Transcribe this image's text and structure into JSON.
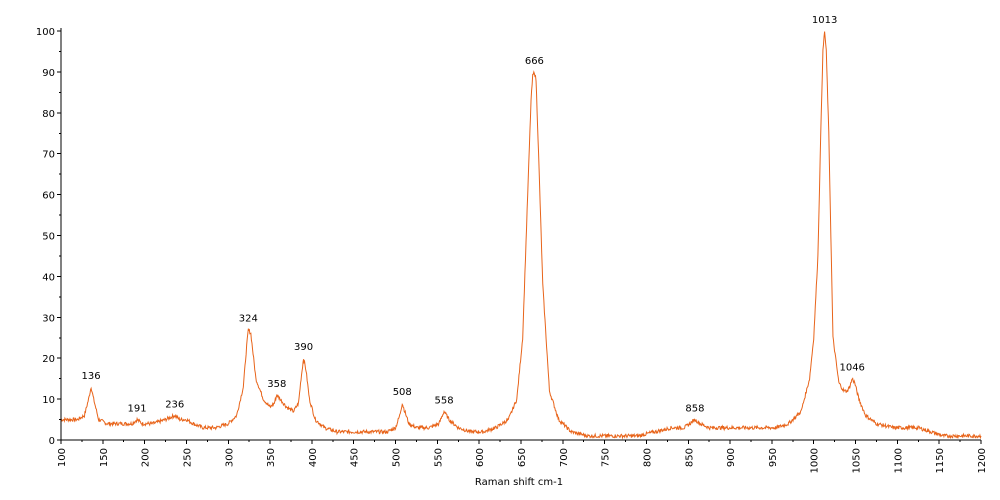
{
  "chart_data": {
    "type": "line",
    "title": "",
    "xlabel": "Raman shift cm-1",
    "ylabel": "",
    "xlim": [
      100,
      1200
    ],
    "ylim": [
      0,
      100
    ],
    "x_ticks": [
      100,
      150,
      200,
      250,
      300,
      350,
      400,
      450,
      500,
      550,
      600,
      650,
      700,
      750,
      800,
      850,
      900,
      950,
      1000,
      1050,
      1100,
      1150,
      1200
    ],
    "y_ticks": [
      0,
      10,
      20,
      30,
      40,
      50,
      60,
      70,
      80,
      90,
      100
    ],
    "grid": false,
    "line_color": "#E8641A",
    "series": [
      {
        "x": [
          100,
          110,
          120,
          128,
          133,
          136,
          139,
          145,
          155,
          170,
          185,
          191,
          197,
          210,
          225,
          236,
          242,
          250,
          258,
          270,
          285,
          300,
          310,
          318,
          322,
          324,
          327,
          333,
          342,
          350,
          355,
          358,
          362,
          370,
          378,
          384,
          387,
          390,
          393,
          397,
          404,
          415,
          430,
          450,
          470,
          490,
          500,
          505,
          508,
          511,
          516,
          525,
          540,
          552,
          558,
          564,
          575,
          590,
          605,
          620,
          635,
          645,
          652,
          658,
          662,
          664,
          666,
          668,
          671,
          676,
          684,
          695,
          710,
          730,
          750,
          770,
          790,
          810,
          830,
          845,
          852,
          858,
          864,
          875,
          895,
          915,
          935,
          955,
          970,
          985,
          995,
          1000,
          1005,
          1009,
          1011,
          1013,
          1015,
          1018,
          1023,
          1030,
          1036,
          1040,
          1043,
          1046,
          1049,
          1054,
          1062,
          1075,
          1095,
          1110,
          1125,
          1140,
          1155,
          1170,
          1185,
          1200
        ],
        "y": [
          5,
          5,
          5,
          6,
          10,
          13,
          10,
          5,
          4,
          4,
          4,
          5,
          4,
          4,
          5,
          6,
          5,
          5,
          4,
          3,
          3,
          4,
          6,
          13,
          23,
          27,
          26,
          15,
          10,
          8,
          9,
          11,
          10,
          8,
          7,
          9,
          15,
          20,
          17,
          10,
          5,
          3,
          2,
          2,
          2,
          2,
          3,
          6,
          9,
          7,
          4,
          3,
          3,
          4,
          7,
          5,
          3,
          2,
          2,
          3,
          5,
          10,
          25,
          60,
          83,
          89,
          90,
          88,
          70,
          38,
          12,
          5,
          2,
          1,
          1,
          1,
          1,
          2,
          3,
          3,
          4,
          5,
          4,
          3,
          3,
          3,
          3,
          3,
          4,
          7,
          15,
          25,
          45,
          80,
          95,
          100,
          95,
          75,
          25,
          14,
          12,
          12,
          13,
          15,
          14,
          10,
          6,
          4,
          3,
          3,
          3,
          2,
          1,
          1,
          1,
          1
        ]
      }
    ],
    "annotations": [
      {
        "x": 136,
        "y": 13,
        "text": "136"
      },
      {
        "x": 191,
        "y": 5,
        "text": "191"
      },
      {
        "x": 236,
        "y": 6,
        "text": "236"
      },
      {
        "x": 324,
        "y": 27,
        "text": "324"
      },
      {
        "x": 358,
        "y": 11,
        "text": "358"
      },
      {
        "x": 390,
        "y": 20,
        "text": "390"
      },
      {
        "x": 508,
        "y": 9,
        "text": "508"
      },
      {
        "x": 558,
        "y": 7,
        "text": "558"
      },
      {
        "x": 666,
        "y": 90,
        "text": "666"
      },
      {
        "x": 858,
        "y": 5,
        "text": "858"
      },
      {
        "x": 1013,
        "y": 100,
        "text": "1013"
      },
      {
        "x": 1046,
        "y": 15,
        "text": "1046"
      }
    ]
  }
}
